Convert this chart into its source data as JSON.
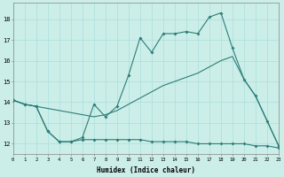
{
  "xlabel": "Humidex (Indice chaleur)",
  "background_color": "#cceee8",
  "line_color": "#2d7d78",
  "grid_color": "#aadddd",
  "x": [
    0,
    1,
    2,
    3,
    4,
    5,
    6,
    7,
    8,
    9,
    10,
    11,
    12,
    13,
    14,
    15,
    16,
    17,
    18,
    19,
    20,
    21,
    22,
    23
  ],
  "line1": [
    14.1,
    13.9,
    13.8,
    12.6,
    12.1,
    12.1,
    12.3,
    13.9,
    13.3,
    13.8,
    15.3,
    17.1,
    16.4,
    17.3,
    17.3,
    17.4,
    17.3,
    18.1,
    18.3,
    16.6,
    15.1,
    14.3,
    13.1,
    11.9
  ],
  "line2": [
    14.1,
    13.9,
    13.8,
    13.7,
    13.6,
    13.5,
    13.4,
    13.3,
    13.4,
    13.6,
    13.9,
    14.2,
    14.5,
    14.8,
    15.0,
    15.2,
    15.4,
    15.7,
    16.0,
    16.2,
    15.1,
    14.3,
    13.1,
    11.9
  ],
  "line3": [
    14.1,
    13.9,
    13.8,
    12.6,
    12.1,
    12.1,
    12.2,
    12.2,
    12.2,
    12.2,
    12.2,
    12.2,
    12.1,
    12.1,
    12.1,
    12.1,
    12.0,
    12.0,
    12.0,
    12.0,
    12.0,
    11.9,
    11.9,
    11.8
  ],
  "xlim": [
    0,
    23
  ],
  "ylim": [
    11.5,
    18.8
  ],
  "yticks": [
    12,
    13,
    14,
    15,
    16,
    17,
    18
  ],
  "xticks": [
    0,
    1,
    2,
    3,
    4,
    5,
    6,
    7,
    8,
    9,
    10,
    11,
    12,
    13,
    14,
    15,
    16,
    17,
    18,
    19,
    20,
    21,
    22,
    23
  ]
}
